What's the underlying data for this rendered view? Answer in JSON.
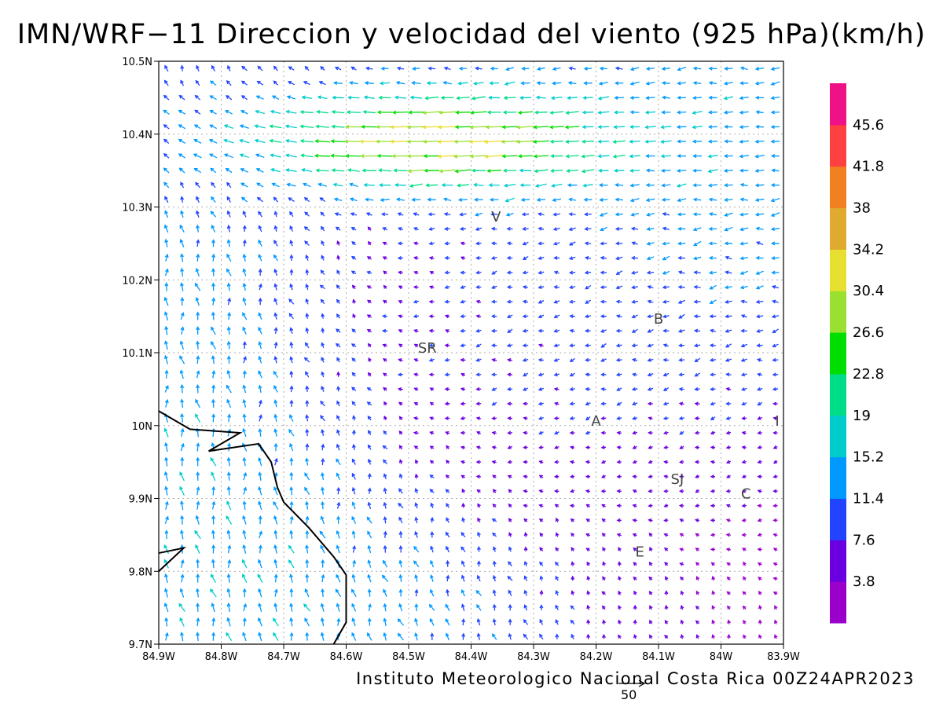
{
  "title": "IMN/WRF−11 Direccion y velocidad del viento (925 hPa)(km/h)",
  "footer": "Instituto Meteorologico Nacional Costa Rica 00Z24APR2023",
  "reference_vector": {
    "label": "50",
    "speed_kmh": 50
  },
  "sites": [
    {
      "label": "V",
      "lon": -84.36,
      "lat": 10.28
    },
    {
      "label": "B",
      "lon": -84.1,
      "lat": 10.14
    },
    {
      "label": "SR",
      "lon": -84.47,
      "lat": 10.1
    },
    {
      "label": "A",
      "lon": -84.2,
      "lat": 10.0
    },
    {
      "label": "I",
      "lon": -83.91,
      "lat": 10.0
    },
    {
      "label": "SJ",
      "lon": -84.07,
      "lat": 9.92
    },
    {
      "label": "C",
      "lon": -83.96,
      "lat": 9.9
    },
    {
      "label": "E",
      "lon": -84.13,
      "lat": 9.82
    }
  ],
  "chart_data": {
    "type": "vector-field",
    "title": "IMN/WRF−11 Direccion y velocidad del viento (925 hPa)(km/h)",
    "units": "km/h",
    "level": "925 hPa",
    "valid_time": "00Z24APR2023",
    "x_range": [
      -84.9,
      -83.9
    ],
    "y_range": [
      9.7,
      10.5
    ],
    "x_ticks": [
      "84.9W",
      "84.8W",
      "84.7W",
      "84.6W",
      "84.5W",
      "84.4W",
      "84.3W",
      "84.2W",
      "84.1W",
      "84W",
      "83.9W"
    ],
    "y_ticks": [
      "9.7N",
      "9.8N",
      "9.9N",
      "10N",
      "10.1N",
      "10.2N",
      "10.3N",
      "10.4N",
      "10.5N"
    ],
    "grid": true,
    "colorbar": {
      "placement": "right",
      "labels": [
        "3.8",
        "7.6",
        "11.4",
        "15.2",
        "19",
        "22.8",
        "26.6",
        "30.4",
        "34.2",
        "38",
        "41.8",
        "45.6"
      ],
      "colors": [
        "#9900cc",
        "#6a00e0",
        "#2244ff",
        "#0099ff",
        "#00cccc",
        "#00dd88",
        "#00dd00",
        "#99e030",
        "#e8e030",
        "#e0aa30",
        "#f08020",
        "#ff4040",
        "#ee1188"
      ]
    },
    "coastline": [
      [
        -84.9,
        10.02
      ],
      [
        -84.85,
        9.995
      ],
      [
        -84.77,
        9.99
      ],
      [
        -84.82,
        9.965
      ],
      [
        -84.74,
        9.975
      ],
      [
        -84.72,
        9.95
      ],
      [
        -84.71,
        9.915
      ],
      [
        -84.7,
        9.895
      ],
      [
        -84.66,
        9.86
      ],
      [
        -84.62,
        9.82
      ],
      [
        -84.6,
        9.795
      ],
      [
        -84.6,
        9.74
      ],
      [
        -84.6,
        9.73
      ],
      [
        -84.62,
        9.7
      ]
    ],
    "coastline_2": [
      [
        -84.9,
        9.825
      ],
      [
        -84.86,
        9.832
      ],
      [
        -84.9,
        9.8
      ]
    ]
  }
}
